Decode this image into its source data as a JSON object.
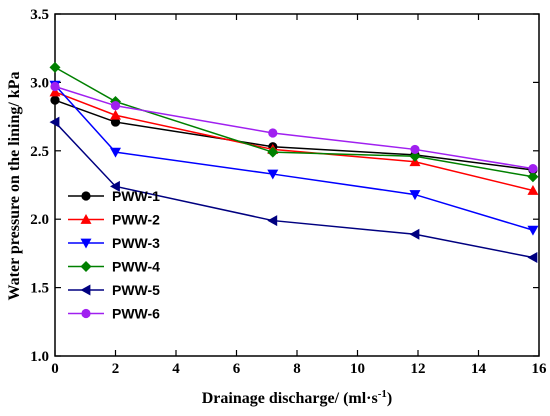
{
  "chart_data": {
    "type": "line",
    "title": "",
    "xlabel": "Drainage discharge/ (ml·s",
    "xlabel_sup": "-1",
    "xlabel_end": ")",
    "ylabel": "Water pressure on the lining/ kPa",
    "xlim": [
      0,
      16
    ],
    "ylim": [
      1.0,
      3.5
    ],
    "xticks": [
      0,
      2,
      4,
      6,
      8,
      10,
      12,
      14,
      16
    ],
    "yticks": [
      1.0,
      1.5,
      2.0,
      2.5,
      3.0,
      3.5
    ],
    "xtick_labels": [
      "0",
      "2",
      "4",
      "6",
      "8",
      "10",
      "12",
      "14",
      "16"
    ],
    "ytick_labels": [
      "1.0",
      "1.5",
      "2.0",
      "2.5",
      "3.0",
      "3.5"
    ],
    "grid": false,
    "legend_position": "lower-left",
    "x": [
      0,
      2,
      7.2,
      11.9,
      15.8
    ],
    "series": [
      {
        "name": "PWW-1",
        "color": "#000000",
        "marker": "circle",
        "values": [
          2.87,
          2.71,
          2.53,
          2.47,
          2.36
        ]
      },
      {
        "name": "PWW-2",
        "color": "#ff0000",
        "marker": "triangle-up",
        "values": [
          2.93,
          2.76,
          2.51,
          2.42,
          2.21
        ]
      },
      {
        "name": "PWW-3",
        "color": "#0000ff",
        "marker": "triangle-down",
        "values": [
          2.98,
          2.49,
          2.33,
          2.18,
          1.92
        ]
      },
      {
        "name": "PWW-4",
        "color": "#008000",
        "marker": "diamond",
        "values": [
          3.11,
          2.86,
          2.49,
          2.46,
          2.31
        ]
      },
      {
        "name": "PWW-5",
        "color": "#000080",
        "marker": "triangle-left",
        "values": [
          2.71,
          2.24,
          1.99,
          1.89,
          1.72
        ]
      },
      {
        "name": "PWW-6",
        "color": "#a020f0",
        "marker": "circle",
        "values": [
          2.97,
          2.83,
          2.63,
          2.51,
          2.37
        ]
      }
    ]
  }
}
